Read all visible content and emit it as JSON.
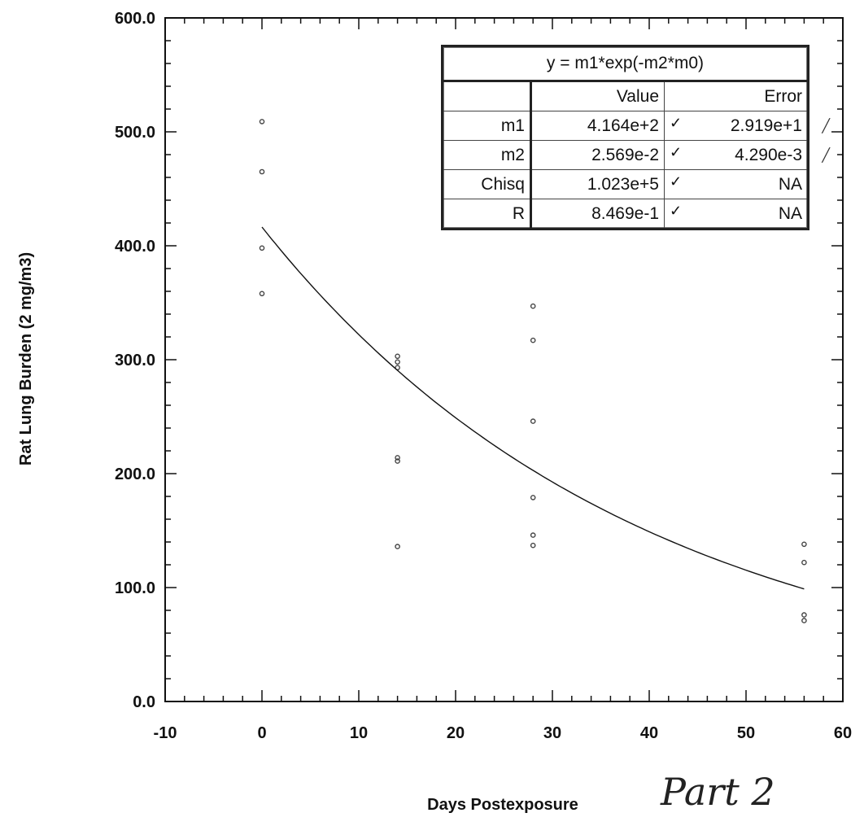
{
  "chart_data": {
    "type": "scatter",
    "xlabel": "Days Postexposure",
    "ylabel": "Rat Lung Burden (2 mg/m3)",
    "xlim": [
      -10,
      60
    ],
    "ylim": [
      0,
      600
    ],
    "x_ticks": [
      "-10",
      "0",
      "10",
      "20",
      "30",
      "40",
      "50",
      "60"
    ],
    "y_ticks": [
      "0.0",
      "100.0",
      "200.0",
      "300.0",
      "400.0",
      "500.0",
      "600.0"
    ],
    "grid": false,
    "series": [
      {
        "type": "scatter",
        "points": [
          {
            "x": 0,
            "y": 509
          },
          {
            "x": 0,
            "y": 465
          },
          {
            "x": 0,
            "y": 398
          },
          {
            "x": 0,
            "y": 358
          },
          {
            "x": 14,
            "y": 303
          },
          {
            "x": 14,
            "y": 298
          },
          {
            "x": 14,
            "y": 293
          },
          {
            "x": 14,
            "y": 214
          },
          {
            "x": 14,
            "y": 211
          },
          {
            "x": 14,
            "y": 136
          },
          {
            "x": 28,
            "y": 347
          },
          {
            "x": 28,
            "y": 317
          },
          {
            "x": 28,
            "y": 246
          },
          {
            "x": 28,
            "y": 179
          },
          {
            "x": 28,
            "y": 146
          },
          {
            "x": 28,
            "y": 137
          },
          {
            "x": 56,
            "y": 138
          },
          {
            "x": 56,
            "y": 122
          },
          {
            "x": 56,
            "y": 76
          },
          {
            "x": 56,
            "y": 71
          }
        ]
      },
      {
        "type": "line",
        "function": "y = 416.4 * exp(-0.02569 * x)",
        "x_range": [
          0,
          56
        ]
      }
    ]
  },
  "fit_table": {
    "equation": "y = m1*exp(-m2*m0)",
    "headers": [
      "",
      "Value",
      "Error"
    ],
    "rows": [
      {
        "name": "m1",
        "value": "4.164e+2",
        "error": "2.919e+1",
        "mark": "✓"
      },
      {
        "name": "m2",
        "value": "2.569e-2",
        "error": "4.290e-3",
        "mark": "✓"
      },
      {
        "name": "Chisq",
        "value": "1.023e+5",
        "error": "NA",
        "mark": "✓"
      },
      {
        "name": "R",
        "value": "8.469e-1",
        "error": "NA",
        "mark": "✓"
      }
    ]
  },
  "handwritten_note": "Part 2"
}
